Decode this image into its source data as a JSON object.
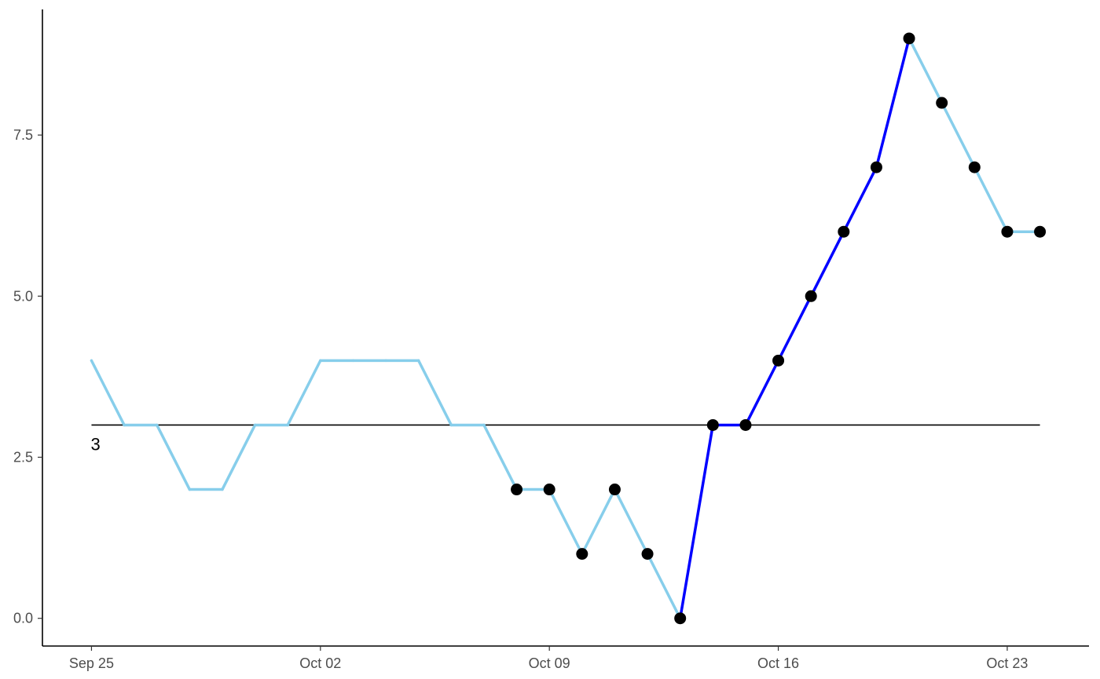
{
  "chart_data": {
    "type": "line",
    "title": "",
    "xlabel": "",
    "ylabel": "",
    "x": [
      "2023-09-25",
      "2023-09-26",
      "2023-09-27",
      "2023-09-28",
      "2023-09-29",
      "2023-09-30",
      "2023-10-01",
      "2023-10-02",
      "2023-10-03",
      "2023-10-04",
      "2023-10-05",
      "2023-10-06",
      "2023-10-07",
      "2023-10-08",
      "2023-10-09",
      "2023-10-10",
      "2023-10-11",
      "2023-10-12",
      "2023-10-13",
      "2023-10-14",
      "2023-10-15",
      "2023-10-16",
      "2023-10-17",
      "2023-10-18",
      "2023-10-19",
      "2023-10-20",
      "2023-10-21",
      "2023-10-22",
      "2023-10-23",
      "2023-10-24"
    ],
    "series": [
      {
        "values": [
          4,
          3,
          3,
          2,
          2,
          3,
          3,
          4,
          4,
          4,
          4,
          3,
          3,
          2,
          2,
          1,
          2,
          1,
          0,
          3,
          3,
          4,
          5,
          6,
          7,
          9,
          8,
          7,
          6,
          6
        ],
        "base_color": "#87CEEB",
        "highlight_color": "#0000FF",
        "highlight_ranges": [
          [
            "2023-10-13",
            "2023-10-20"
          ]
        ],
        "marked_points": [
          "2023-10-08",
          "2023-10-09",
          "2023-10-10",
          "2023-10-11",
          "2023-10-12",
          "2023-10-13",
          "2023-10-14",
          "2023-10-15",
          "2023-10-16",
          "2023-10-17",
          "2023-10-18",
          "2023-10-19",
          "2023-10-20",
          "2023-10-21",
          "2023-10-22",
          "2023-10-23",
          "2023-10-24"
        ],
        "marker_color": "#000000"
      }
    ],
    "reference_line": {
      "value": 3,
      "label": "3",
      "color": "#000000"
    },
    "x_ticks": [
      {
        "date": "2023-09-25",
        "label": "Sep 25"
      },
      {
        "date": "2023-10-02",
        "label": "Oct 02"
      },
      {
        "date": "2023-10-09",
        "label": "Oct 09"
      },
      {
        "date": "2023-10-16",
        "label": "Oct 16"
      },
      {
        "date": "2023-10-23",
        "label": "Oct 23"
      }
    ],
    "y_ticks": [
      "0.0",
      "2.5",
      "5.0",
      "7.5"
    ],
    "ylim": [
      -0.43,
      9.45
    ],
    "xlim": [
      "2023-09-23T12:00:00",
      "2023-10-25T12:00:00"
    ],
    "grid": false,
    "legend": "none"
  }
}
